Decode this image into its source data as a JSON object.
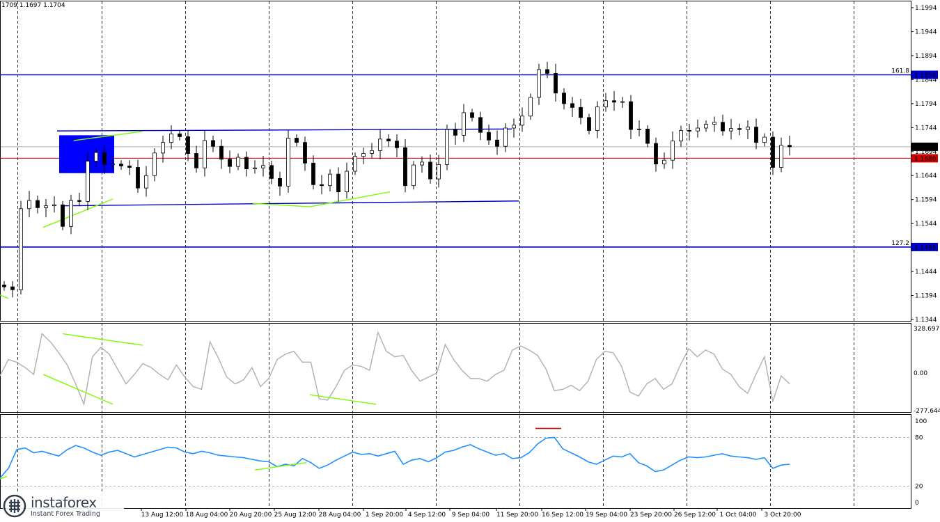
{
  "ohlc_text": "1709 1.1697 1.1704",
  "watermark": {
    "brand": "instaforex",
    "sub": "Instant Forex Trading"
  },
  "colors": {
    "candle": "#000000",
    "level": "#0000cc",
    "current": "#cc0000",
    "cci": "#b4b4b4",
    "rsi": "#1e90ff",
    "divergence": "#7cfc00",
    "box": "#0000ff"
  },
  "chart_data": [
    {
      "type": "candlestick",
      "ylim": [
        1.1344,
        1.1994
      ],
      "yticks": [
        "1.1994",
        "1.1944",
        "1.1894",
        "1.1844",
        "1.1794",
        "1.1744",
        "1.1694",
        "1.1644",
        "1.1594",
        "1.1544",
        "1.1494",
        "1.1444",
        "1.1394",
        "1.1344"
      ],
      "x_labels": [
        "13 Aug 12:00",
        "18 Aug 04:00",
        "20 Aug 20:00",
        "25 Aug 12:00",
        "28 Aug 04:00",
        "1 Sep 20:00",
        "4 Sep 12:00",
        "9 Sep 04:00",
        "11 Sep 20:00",
        "16 Sep 12:00",
        "19 Sep 04:00",
        "23 Sep 20:00",
        "26 Sep 12:00",
        "1 Oct 04:00",
        "3 Oct 20:00"
      ],
      "levels": [
        {
          "label": "161.8",
          "value": "1.1854",
          "price": 1.1854
        },
        {
          "label": "127.2",
          "value": "1.1495",
          "price": 1.1495
        }
      ],
      "current_price": "1.1704",
      "red_line_price": "1.1680",
      "close_path": [
        1.1412,
        1.1406,
        1.1575,
        1.1592,
        1.1577,
        1.1581,
        1.1583,
        1.1538,
        1.1592,
        1.159,
        1.1674,
        1.1692,
        1.1667,
        1.1668,
        1.1664,
        1.1661,
        1.1618,
        1.1644,
        1.1691,
        1.1713,
        1.1731,
        1.1725,
        1.169,
        1.166,
        1.1717,
        1.1705,
        1.1678,
        1.1663,
        1.1682,
        1.1658,
        1.166,
        1.1665,
        1.1638,
        1.1622,
        1.1722,
        1.1713,
        1.167,
        1.1625,
        1.1623,
        1.1647,
        1.161,
        1.1653,
        1.1684,
        1.169,
        1.1696,
        1.172,
        1.1716,
        1.1702,
        1.1623,
        1.1666,
        1.1672,
        1.1637,
        1.1667,
        1.174,
        1.1728,
        1.1775,
        1.1765,
        1.1734,
        1.1718,
        1.1705,
        1.1743,
        1.1749,
        1.1768,
        1.1807,
        1.1865,
        1.1857,
        1.1816,
        1.1794,
        1.1786,
        1.1765,
        1.1738,
        1.1787,
        1.18,
        1.1797,
        1.1798,
        1.174,
        1.1741,
        1.1711,
        1.1668,
        1.1676,
        1.1716,
        1.1738,
        1.1737,
        1.1743,
        1.1751,
        1.1755,
        1.1737,
        1.1742,
        1.174,
        1.1745,
        1.1713,
        1.1724,
        1.1661,
        1.1707,
        1.1704
      ]
    },
    {
      "type": "line",
      "name": "",
      "yticks": [
        "328.6976",
        "0.00",
        "-277.6449"
      ],
      "ylim": [
        -277.6449,
        328.6976
      ],
      "values": [
        -20,
        100,
        80,
        40,
        -10,
        290,
        230,
        150,
        60,
        -80,
        -230,
        120,
        190,
        140,
        30,
        -80,
        -10,
        70,
        40,
        -10,
        -50,
        60,
        -30,
        -100,
        -120,
        230,
        110,
        -30,
        -80,
        -50,
        40,
        -100,
        -40,
        100,
        140,
        160,
        80,
        80,
        -190,
        -200,
        -100,
        20,
        60,
        50,
        20,
        300,
        160,
        120,
        130,
        20,
        -60,
        -30,
        0,
        210,
        100,
        20,
        -40,
        -40,
        -60,
        -10,
        20,
        170,
        200,
        170,
        130,
        30,
        -130,
        -120,
        -90,
        -130,
        -60,
        100,
        160,
        150,
        50,
        -140,
        -170,
        -80,
        -40,
        -120,
        -80,
        60,
        180,
        120,
        170,
        140,
        30,
        -10,
        -100,
        -150,
        -10,
        120,
        -210,
        -20,
        -80
      ]
    },
    {
      "type": "line",
      "name": "",
      "yticks": [
        "100",
        "80",
        "20",
        "0"
      ],
      "ylim": [
        0,
        100
      ],
      "values": [
        30,
        42,
        65,
        67,
        61,
        63,
        60,
        57,
        65,
        70,
        67,
        62,
        58,
        62,
        64,
        60,
        56,
        59,
        62,
        65,
        68,
        67,
        62,
        60,
        63,
        61,
        58,
        57,
        56,
        55,
        53,
        51,
        50,
        44,
        47,
        45,
        54,
        49,
        42,
        46,
        52,
        57,
        62,
        59,
        60,
        57,
        60,
        63,
        47,
        52,
        54,
        50,
        55,
        62,
        64,
        68,
        71,
        66,
        62,
        58,
        60,
        54,
        55,
        61,
        72,
        79,
        80,
        66,
        61,
        56,
        50,
        47,
        52,
        57,
        56,
        60,
        49,
        45,
        38,
        40,
        46,
        52,
        56,
        55,
        56,
        58,
        60,
        57,
        56,
        55,
        53,
        55,
        42,
        46,
        47
      ]
    }
  ]
}
